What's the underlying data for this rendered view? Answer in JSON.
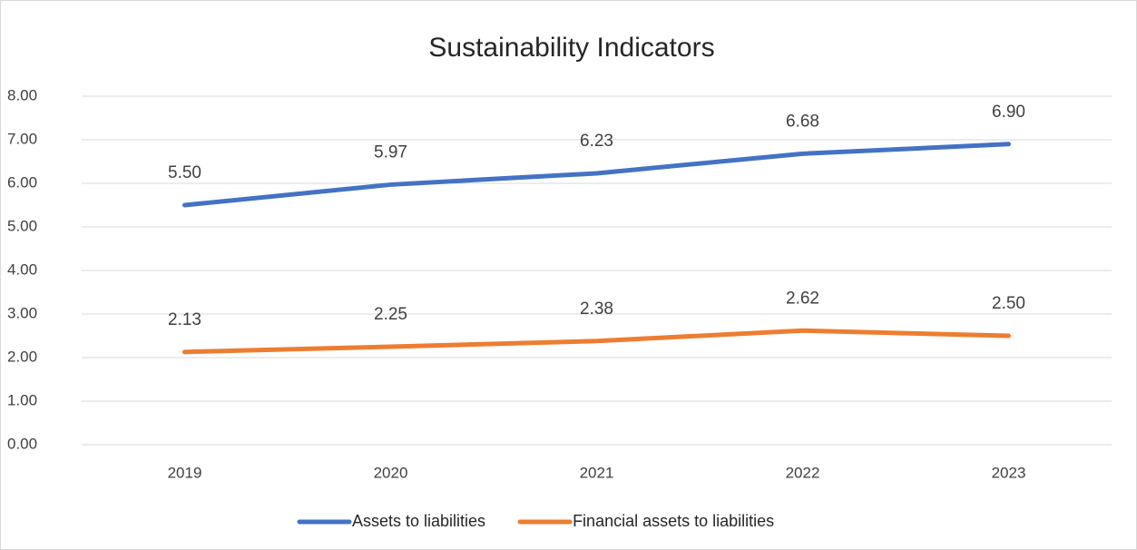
{
  "chart_data": {
    "type": "line",
    "title": "Sustainability Indicators",
    "categories": [
      "2019",
      "2020",
      "2021",
      "2022",
      "2023"
    ],
    "series": [
      {
        "name": "Assets to liabilities",
        "color": "#4472c4",
        "values": [
          5.5,
          5.97,
          6.23,
          6.68,
          6.9
        ],
        "value_labels": [
          "5.50",
          "5.97",
          "6.23",
          "6.68",
          "6.90"
        ]
      },
      {
        "name": "Financial assets to liabilities",
        "color": "#ed7d31",
        "values": [
          2.13,
          2.25,
          2.38,
          2.62,
          2.5
        ],
        "value_labels": [
          "2.13",
          "2.25",
          "2.38",
          "2.62",
          "2.50"
        ]
      }
    ],
    "ylim": [
      0,
      8
    ],
    "yticks": [
      {
        "value": 0,
        "label": "0.00"
      },
      {
        "value": 1,
        "label": "1.00"
      },
      {
        "value": 2,
        "label": "2.00"
      },
      {
        "value": 3,
        "label": "3.00"
      },
      {
        "value": 4,
        "label": "4.00"
      },
      {
        "value": 5,
        "label": "5.00"
      },
      {
        "value": 6,
        "label": "6.00"
      },
      {
        "value": 7,
        "label": "7.00"
      },
      {
        "value": 8,
        "label": "8.00"
      }
    ],
    "grid": true,
    "legend": "bottom"
  }
}
